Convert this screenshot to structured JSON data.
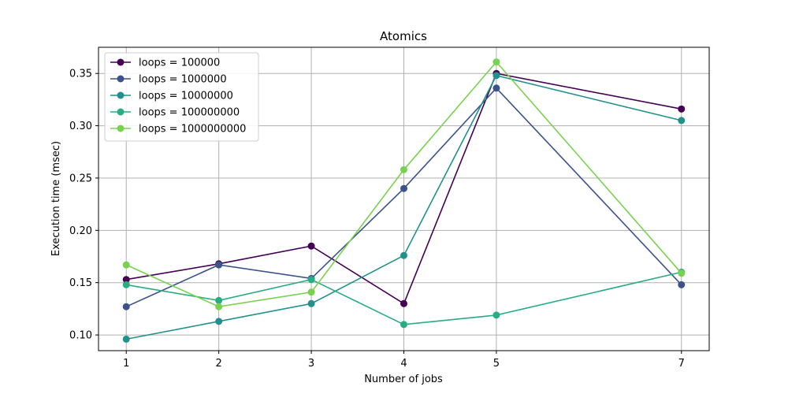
{
  "chart_data": {
    "type": "line",
    "title": "Atomics",
    "xlabel": "Number of jobs",
    "ylabel": "Execution time (msec)",
    "xlim": [
      0.7,
      7.3
    ],
    "ylim": [
      0.085,
      0.375
    ],
    "xticks": [
      1,
      2,
      3,
      4,
      5,
      7
    ],
    "yticks": [
      0.1,
      0.15,
      0.2,
      0.25,
      0.3,
      0.35
    ],
    "ytick_labels": [
      "0.10",
      "0.15",
      "0.20",
      "0.25",
      "0.30",
      "0.35"
    ],
    "grid": true,
    "legend_position": "top-left",
    "x": [
      1,
      2,
      3,
      4,
      5,
      7
    ],
    "series": [
      {
        "name": "loops = 100000",
        "color": "#440154",
        "values": [
          0.153,
          0.168,
          0.185,
          0.13,
          0.35,
          0.316
        ]
      },
      {
        "name": "loops = 1000000",
        "color": "#3b528b",
        "values": [
          0.127,
          0.167,
          0.154,
          0.24,
          0.336,
          0.148
        ]
      },
      {
        "name": "loops = 10000000",
        "color": "#21918c",
        "values": [
          0.096,
          0.113,
          0.13,
          0.176,
          0.348,
          0.305
        ]
      },
      {
        "name": "loops = 100000000",
        "color": "#27ad81",
        "values": [
          0.148,
          0.133,
          0.153,
          0.11,
          0.119,
          0.16
        ]
      },
      {
        "name": "loops = 1000000000",
        "color": "#7ad151",
        "values": [
          0.167,
          0.127,
          0.141,
          0.258,
          0.361,
          0.159
        ]
      }
    ]
  }
}
